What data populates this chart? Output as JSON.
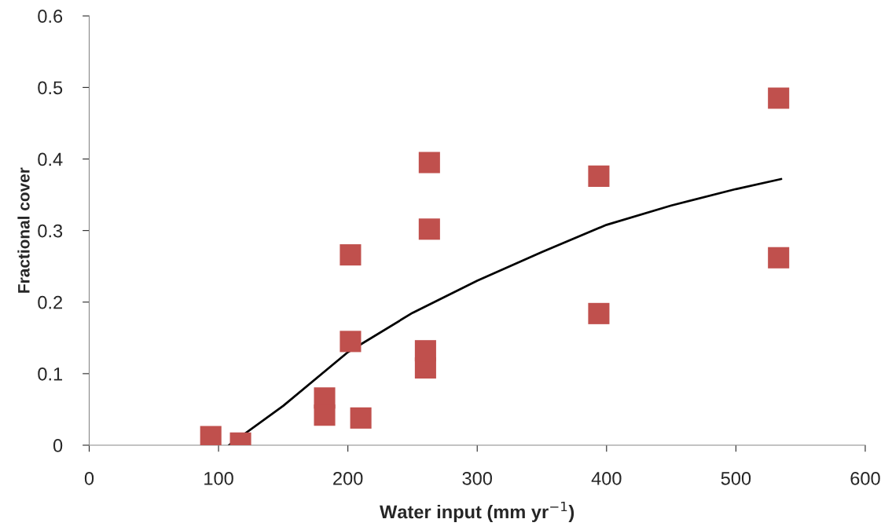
{
  "chart_data": {
    "type": "scatter",
    "xlabel": "Water input (mm yr$^{−1}$)",
    "ylabel": "Fractional cover",
    "xlim": [
      0,
      600
    ],
    "xticks": [
      0,
      100,
      200,
      300,
      400,
      500,
      600
    ],
    "ylim": [
      0,
      0.6
    ],
    "yticks": [
      0,
      0.1,
      0.2,
      0.3,
      0.4,
      0.5,
      0.6
    ],
    "grid": false,
    "legend": false,
    "marker": "square",
    "series": [
      {
        "color": "#c0504d",
        "x": [
          94,
          117,
          182,
          182,
          202,
          202,
          210,
          260,
          260,
          263,
          263,
          394,
          394,
          533,
          533
        ],
        "values": [
          0.012,
          0.003,
          0.066,
          0.042,
          0.266,
          0.145,
          0.038,
          0.108,
          0.132,
          0.395,
          0.302,
          0.376,
          0.184,
          0.485,
          0.262
        ]
      },
      {
        "type": "line",
        "color": "#000000",
        "marker": "none",
        "x": [
          108,
          150,
          200,
          250,
          300,
          350,
          400,
          450,
          500,
          535
        ],
        "values": [
          0,
          0.055,
          0.13,
          0.185,
          0.23,
          0.27,
          0.308,
          0.335,
          0.358,
          0.372
        ]
      }
    ]
  }
}
